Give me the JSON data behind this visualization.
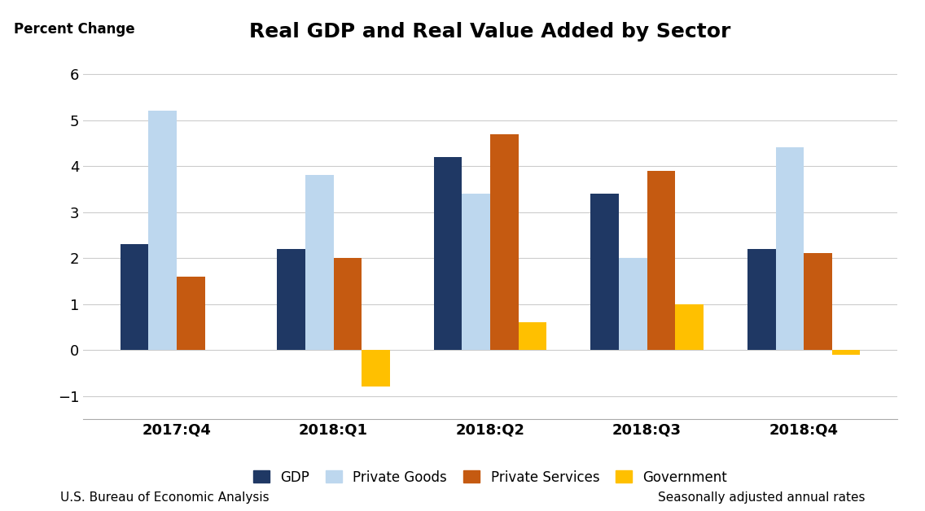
{
  "title": "Real GDP and Real Value Added by Sector",
  "ylabel": "Percent Change",
  "categories": [
    "2017:Q4",
    "2018:Q1",
    "2018:Q2",
    "2018:Q3",
    "2018:Q4"
  ],
  "series": {
    "GDP": [
      2.3,
      2.2,
      4.2,
      3.4,
      2.2
    ],
    "Private Goods": [
      5.2,
      3.8,
      3.4,
      2.0,
      4.4
    ],
    "Private Services": [
      1.6,
      2.0,
      4.7,
      3.9,
      2.1
    ],
    "Government": [
      null,
      -0.8,
      0.6,
      1.0,
      -0.1
    ]
  },
  "colors": {
    "GDP": "#1F3864",
    "Private Goods": "#BDD7EE",
    "Private Services": "#C55A11",
    "Government": "#FFC000"
  },
  "ylim": [
    -1.5,
    6.5
  ],
  "yticks": [
    -1,
    0,
    1,
    2,
    3,
    4,
    5,
    6
  ],
  "bar_width": 0.18,
  "footer_left": "U.S. Bureau of Economic Analysis",
  "footer_right": "Seasonally adjusted annual rates",
  "background_color": "#FFFFFF",
  "grid_color": "#CCCCCC",
  "title_fontsize": 18,
  "tick_fontsize": 13,
  "ylabel_fontsize": 12,
  "legend_fontsize": 12,
  "footer_fontsize": 11
}
